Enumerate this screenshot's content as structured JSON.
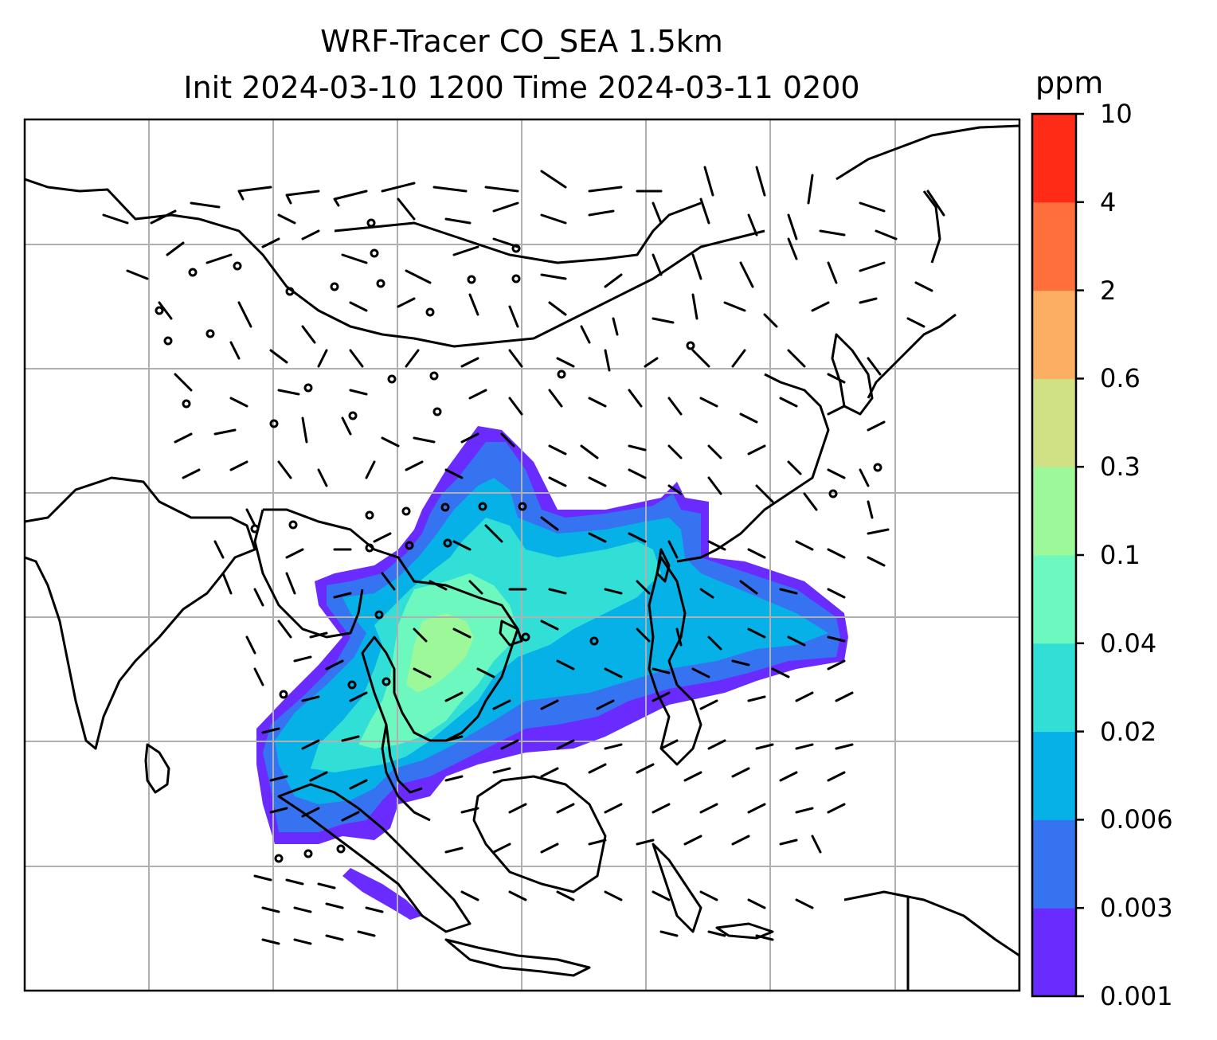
{
  "title": {
    "line1": "WRF-Tracer CO_SEA 1.5km",
    "line2": "Init 2024-03-10 1200 Time 2024-03-11 0200"
  },
  "colorbar": {
    "unit": "ppm",
    "levels": [
      "0.001",
      "0.003",
      "0.006",
      "0.02",
      "0.04",
      "0.1",
      "0.3",
      "0.6",
      "2",
      "4",
      "10"
    ],
    "colors": [
      "#6a2bff",
      "#3673f0",
      "#06b1e8",
      "#31dfd6",
      "#6cf8be",
      "#9df89a",
      "#d0e084",
      "#fcae62",
      "#ff6f3c",
      "#ff2b16"
    ]
  },
  "map": {
    "background": "#ffffff",
    "gridline_color": "#b0b0b0",
    "coastline_color": "#000000",
    "field": "CO tracer concentration with wind barbs"
  }
}
